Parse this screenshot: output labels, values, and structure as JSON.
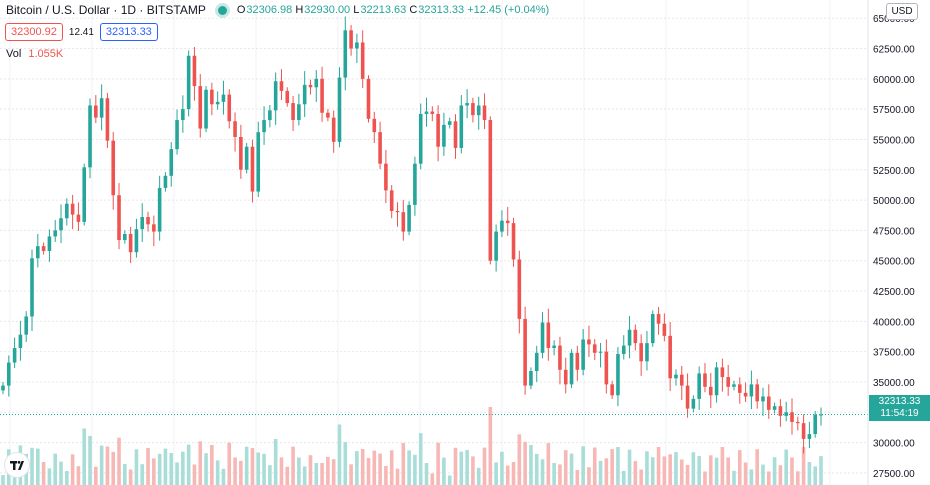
{
  "header": {
    "symbol_title": "Bitcoin / U.S. Dollar · 1D · BITSTAMP",
    "open_label": "O",
    "open": "32306.98",
    "high_label": "H",
    "high": "32930.00",
    "low_label": "L",
    "low": "32213.63",
    "close_label": "C",
    "close": "32313.33",
    "change": "+12.45 (+0.04%)",
    "sell_price": "32300.92",
    "spread": "12.41",
    "buy_price": "32313.33",
    "volume_label": "Vol",
    "volume_value": "1.055K"
  },
  "currency_button": "USD",
  "price_tag": {
    "price": "32313.33",
    "countdown": "11:54:19"
  },
  "colors": {
    "up": "#26a69a",
    "down": "#ef5350",
    "up_volume": "#a8ddd8",
    "down_volume": "#f7b7b5",
    "grid": "#e6e8ee"
  },
  "chart_data": {
    "type": "candlestick",
    "y_axis_ticks": [
      "27500.00",
      "30000.00",
      "32500.00",
      "35000.00",
      "37500.00",
      "40000.00",
      "42500.00",
      "45000.00",
      "47500.00",
      "50000.00",
      "52500.00",
      "55000.00",
      "57500.00",
      "60000.00",
      "62500.00",
      "65000.00"
    ],
    "ylim": [
      26500,
      66500
    ],
    "closes": [
      34700,
      36600,
      37800,
      38900,
      40400,
      45200,
      46200,
      45800,
      47000,
      47500,
      48500,
      49700,
      48800,
      48200,
      52700,
      57800,
      56800,
      58400,
      54900,
      50400,
      46700,
      47200,
      45700,
      47600,
      48600,
      48000,
      47400,
      51000,
      52000,
      54200,
      56600,
      57500,
      61900,
      59400,
      55900,
      59100,
      57900,
      58100,
      58700,
      56500,
      55200,
      52500,
      54400,
      50700,
      55600,
      56600,
      57400,
      59800,
      59000,
      58000,
      56600,
      57900,
      59500,
      59300,
      60000,
      57200,
      56800,
      54800,
      60100,
      64000,
      62500,
      63000,
      60000,
      56700,
      55600,
      53000,
      50800,
      49100,
      49000,
      47400,
      49600,
      53000,
      57100,
      57300,
      57100,
      54400,
      56200,
      56500,
      54300,
      57800,
      58000,
      57000,
      57800,
      56600,
      45000,
      47400,
      48300,
      48100,
      45100,
      40200,
      34700,
      35900,
      37400,
      39900,
      37800,
      38000,
      36000,
      34800,
      37400,
      36000,
      38500,
      38100,
      37400,
      37500,
      34800,
      33900,
      37300,
      38000,
      39300,
      38200,
      36700,
      38200,
      40600,
      39800,
      38800,
      35300,
      35600,
      34700,
      32800,
      33600,
      35700,
      34600,
      33900,
      36200,
      35400,
      34600,
      34800,
      34100,
      33800,
      34800,
      33400,
      33800,
      32700,
      33000,
      32200,
      32500,
      31700,
      31600,
      30300,
      30700,
      32300,
      32313
    ]
  }
}
